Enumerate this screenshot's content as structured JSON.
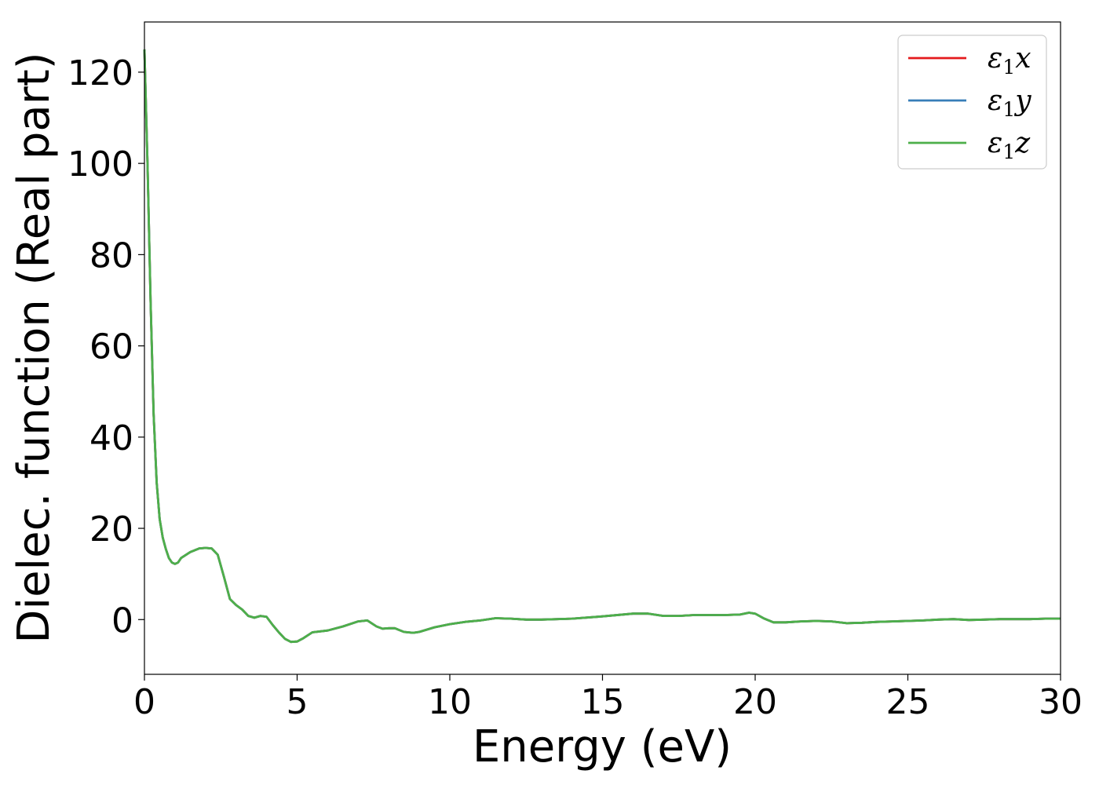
{
  "chart_data": {
    "type": "line",
    "title": "",
    "xlabel": "Energy (eV)",
    "ylabel": "Dielec. function (Real part)",
    "xlim": [
      0,
      30
    ],
    "ylim": [
      -12,
      131
    ],
    "xticks": [
      0,
      5,
      10,
      15,
      20,
      25,
      30
    ],
    "yticks": [
      0,
      20,
      40,
      60,
      80,
      100,
      120
    ],
    "grid": false,
    "legend_position": "top-right",
    "x": [
      0.0,
      0.1,
      0.2,
      0.3,
      0.4,
      0.5,
      0.6,
      0.7,
      0.8,
      0.9,
      1.0,
      1.1,
      1.2,
      1.5,
      1.8,
      2.0,
      2.2,
      2.4,
      2.6,
      2.8,
      3.0,
      3.2,
      3.4,
      3.6,
      3.8,
      4.0,
      4.2,
      4.4,
      4.6,
      4.8,
      5.0,
      5.2,
      5.5,
      6.0,
      6.5,
      7.0,
      7.3,
      7.6,
      7.8,
      8.0,
      8.2,
      8.5,
      8.8,
      9.0,
      9.5,
      10.0,
      10.5,
      11.0,
      11.5,
      12.0,
      12.5,
      13.0,
      14.0,
      15.0,
      16.0,
      16.5,
      17.0,
      17.5,
      18.0,
      18.5,
      19.0,
      19.5,
      19.8,
      20.0,
      20.3,
      20.6,
      21.0,
      21.5,
      22.0,
      22.5,
      23.0,
      23.5,
      24.0,
      24.5,
      25.0,
      25.5,
      26.0,
      26.5,
      27.0,
      27.5,
      28.0,
      28.5,
      29.0,
      29.5,
      30.0
    ],
    "series": [
      {
        "name": "ε1x",
        "color": "#e41a1c",
        "values": [
          125,
          100,
          70,
          45,
          30,
          22,
          18,
          15.5,
          13.5,
          12.5,
          12.2,
          12.5,
          13.5,
          14.8,
          15.6,
          15.7,
          15.6,
          14.2,
          9.5,
          4.5,
          3.2,
          2.2,
          0.8,
          0.4,
          0.8,
          0.6,
          -1.2,
          -2.8,
          -4.2,
          -4.9,
          -4.8,
          -4.1,
          -2.8,
          -2.4,
          -1.5,
          -0.4,
          -0.2,
          -1.5,
          -2.0,
          -1.9,
          -1.9,
          -2.7,
          -2.9,
          -2.7,
          -1.7,
          -1.0,
          -0.5,
          -0.2,
          0.3,
          0.2,
          0.0,
          0.0,
          0.2,
          0.7,
          1.3,
          1.3,
          0.8,
          0.8,
          1.0,
          1.0,
          1.0,
          1.1,
          1.5,
          1.3,
          0.2,
          -0.6,
          -0.6,
          -0.4,
          -0.3,
          -0.4,
          -0.8,
          -0.7,
          -0.5,
          -0.4,
          -0.3,
          -0.2,
          0.0,
          0.1,
          -0.1,
          0.0,
          0.1,
          0.1,
          0.1,
          0.2,
          0.2
        ]
      },
      {
        "name": "ε1y",
        "color": "#377eb8",
        "values": [
          125,
          100,
          70,
          45,
          30,
          22,
          18,
          15.5,
          13.5,
          12.5,
          12.2,
          12.5,
          13.5,
          14.8,
          15.6,
          15.7,
          15.6,
          14.2,
          9.5,
          4.5,
          3.2,
          2.2,
          0.8,
          0.4,
          0.8,
          0.6,
          -1.2,
          -2.8,
          -4.2,
          -4.9,
          -4.8,
          -4.1,
          -2.8,
          -2.4,
          -1.5,
          -0.4,
          -0.2,
          -1.5,
          -2.0,
          -1.9,
          -1.9,
          -2.7,
          -2.9,
          -2.7,
          -1.7,
          -1.0,
          -0.5,
          -0.2,
          0.3,
          0.2,
          0.0,
          0.0,
          0.2,
          0.7,
          1.3,
          1.3,
          0.8,
          0.8,
          1.0,
          1.0,
          1.0,
          1.1,
          1.5,
          1.3,
          0.2,
          -0.6,
          -0.6,
          -0.4,
          -0.3,
          -0.4,
          -0.8,
          -0.7,
          -0.5,
          -0.4,
          -0.3,
          -0.2,
          0.0,
          0.1,
          -0.1,
          0.0,
          0.1,
          0.1,
          0.1,
          0.2,
          0.2
        ]
      },
      {
        "name": "ε1z",
        "color": "#4daf4a",
        "values": [
          125,
          100,
          70,
          45,
          30,
          22,
          18,
          15.5,
          13.5,
          12.5,
          12.2,
          12.5,
          13.5,
          14.8,
          15.6,
          15.7,
          15.6,
          14.2,
          9.5,
          4.5,
          3.2,
          2.2,
          0.8,
          0.4,
          0.8,
          0.6,
          -1.2,
          -2.8,
          -4.2,
          -4.9,
          -4.8,
          -4.1,
          -2.8,
          -2.4,
          -1.5,
          -0.4,
          -0.2,
          -1.5,
          -2.0,
          -1.9,
          -1.9,
          -2.7,
          -2.9,
          -2.7,
          -1.7,
          -1.0,
          -0.5,
          -0.2,
          0.3,
          0.2,
          0.0,
          0.0,
          0.2,
          0.7,
          1.3,
          1.3,
          0.8,
          0.8,
          1.0,
          1.0,
          1.0,
          1.1,
          1.5,
          1.3,
          0.2,
          -0.6,
          -0.6,
          -0.4,
          -0.3,
          -0.4,
          -0.8,
          -0.7,
          -0.5,
          -0.4,
          -0.3,
          -0.2,
          0.0,
          0.1,
          -0.1,
          0.0,
          0.1,
          0.1,
          0.1,
          0.2,
          0.2
        ]
      }
    ]
  }
}
